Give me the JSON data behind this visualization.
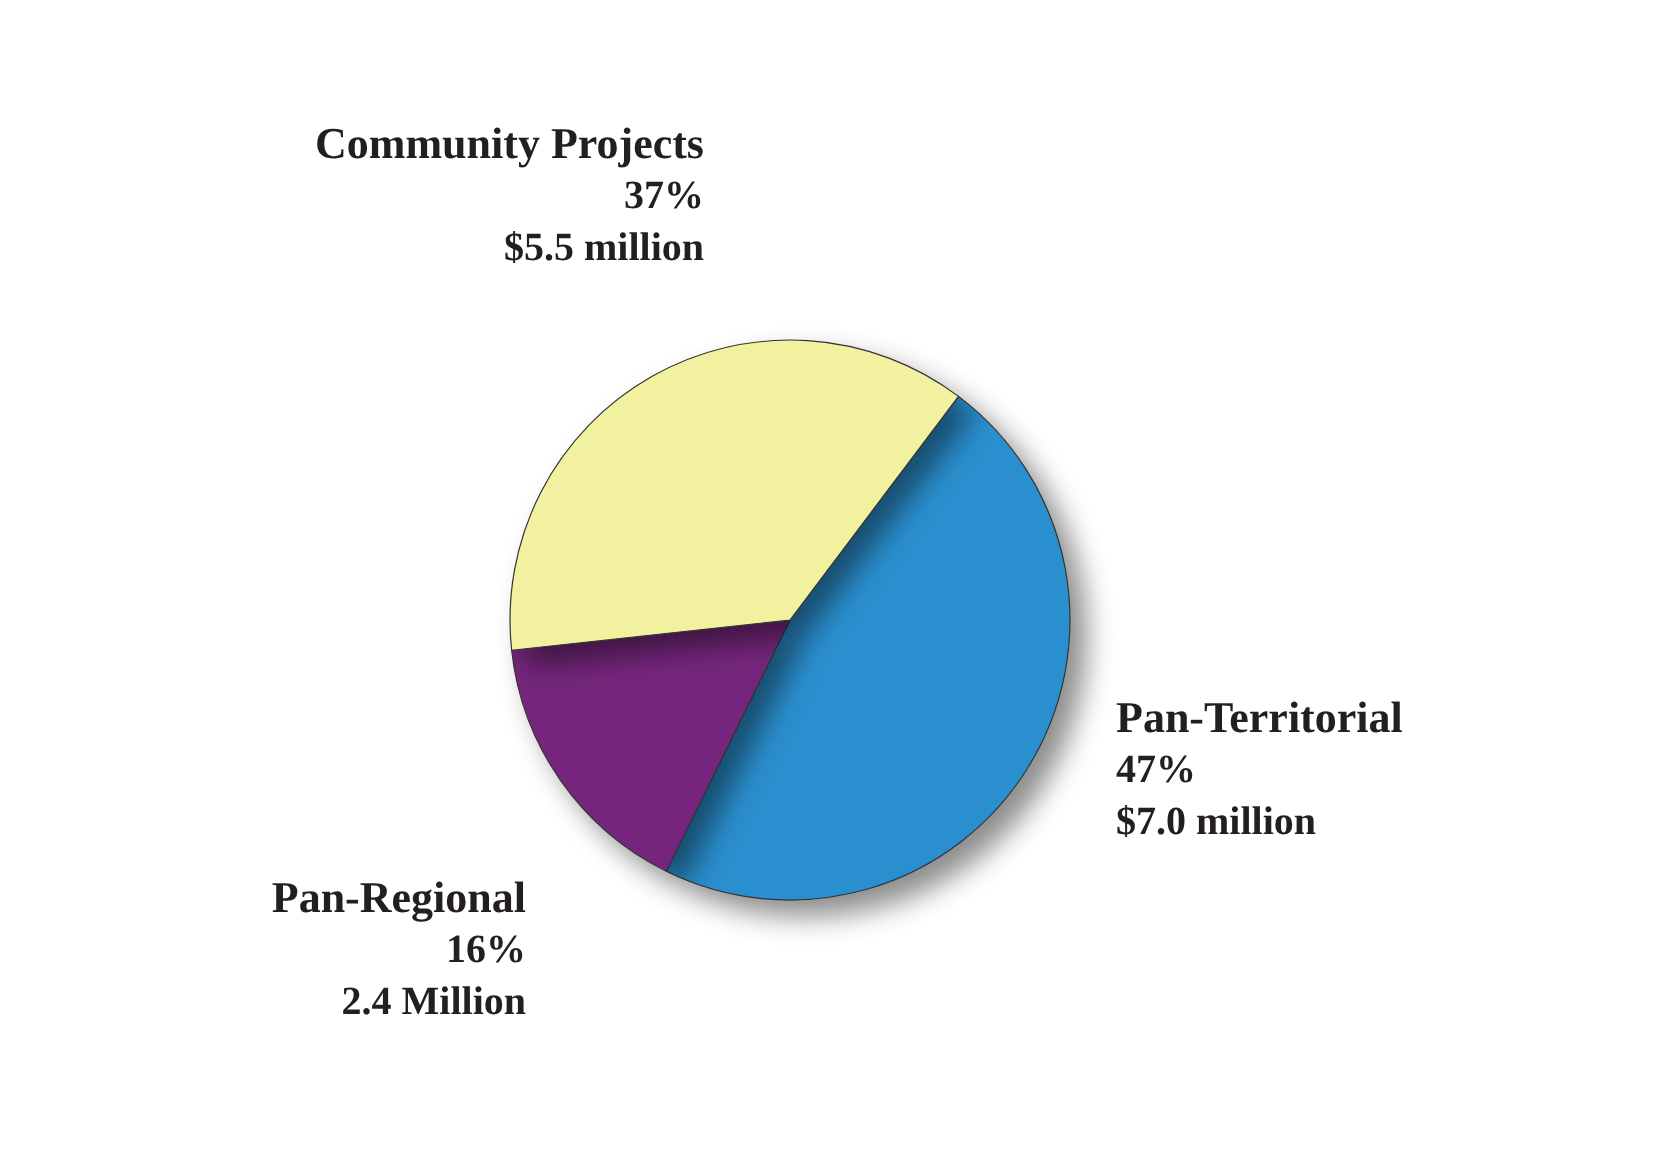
{
  "chart_data": {
    "type": "pie",
    "categories": [
      "Pan-Territorial",
      "Pan-Regional",
      "Community Projects"
    ],
    "values": [
      47,
      16,
      37
    ],
    "colors": [
      "#2b8fce",
      "#74287c",
      "#f2f19f"
    ],
    "value_labels": [
      "47%\n$7.0 million",
      "16%\n2.4 Million",
      "37%\n$5.5 million"
    ],
    "legend": false
  }
}
